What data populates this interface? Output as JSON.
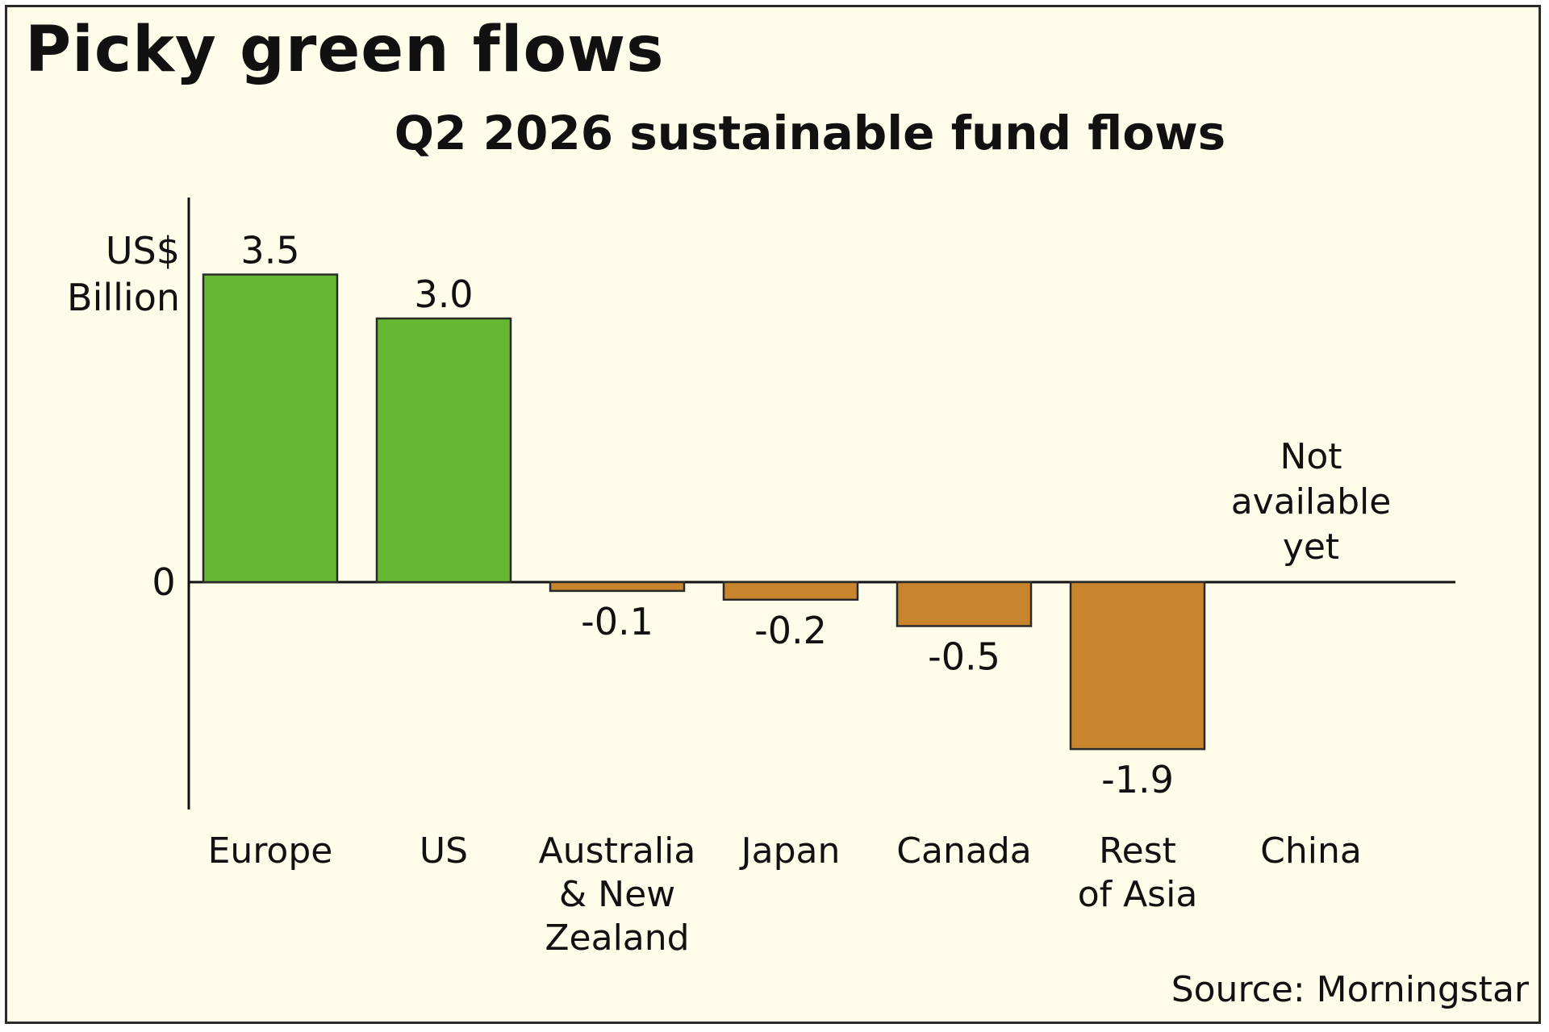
{
  "chart_data": {
    "type": "bar",
    "title": "Picky green flows",
    "subtitle": "Q2 2026 sustainable fund flows",
    "ylabel_lines": [
      "US$",
      "Billion"
    ],
    "zero_label": "0",
    "categories": [
      "Europe",
      "US",
      "Australia & New Zealand",
      "Japan",
      "Canada",
      "Rest of Asia",
      "China"
    ],
    "category_label_lines": [
      [
        "Europe"
      ],
      [
        "US"
      ],
      [
        "Australia",
        "& New",
        "Zealand"
      ],
      [
        "Japan"
      ],
      [
        "Canada"
      ],
      [
        "Rest",
        "of Asia"
      ],
      [
        "China"
      ]
    ],
    "values": [
      3.5,
      3.0,
      -0.1,
      -0.2,
      -0.5,
      -1.9,
      null
    ],
    "value_labels": [
      "3.5",
      "3.0",
      "-0.1",
      "-0.2",
      "-0.5",
      "-1.9",
      ""
    ],
    "annotation_lines": [
      "Not",
      "available",
      "yet"
    ],
    "annotation_category": "China",
    "ylim": [
      -2.5,
      4.3
    ],
    "grid": false,
    "legend": "none",
    "colors": {
      "positive": "#66b832",
      "negative": "#c8852e",
      "axis": "#111111"
    },
    "source": "Source: Morningstar"
  }
}
